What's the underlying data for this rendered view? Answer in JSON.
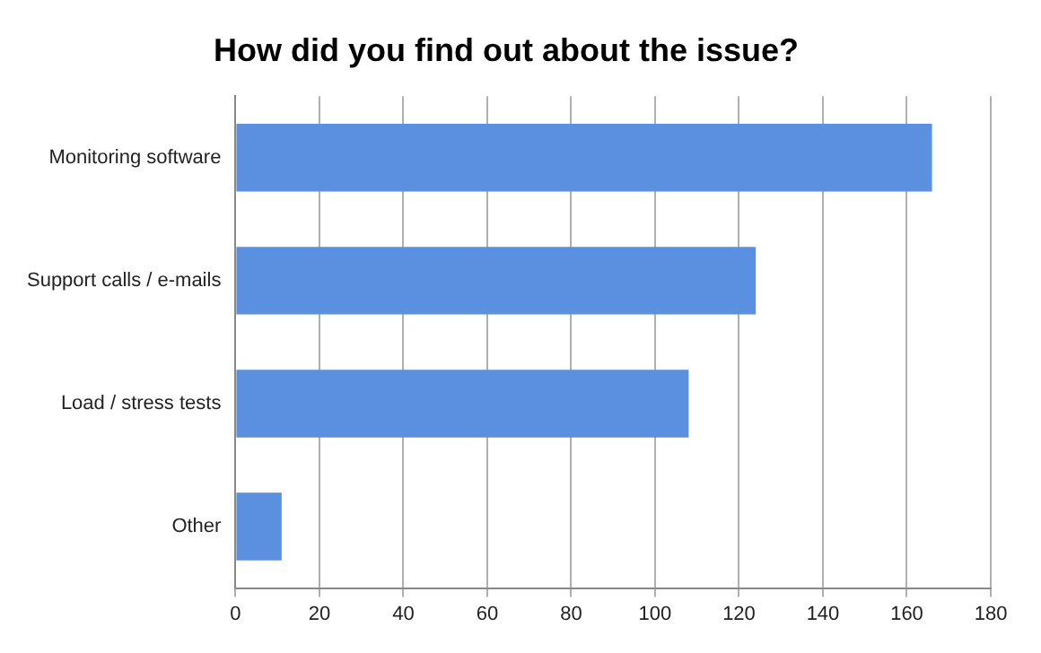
{
  "chart_data": {
    "type": "bar",
    "orientation": "horizontal",
    "title": "How did you find out about the issue?",
    "categories": [
      "Monitoring software",
      "Support calls / e-mails",
      "Load / stress tests",
      "Other"
    ],
    "values": [
      166,
      124,
      108,
      11
    ],
    "color": "#5b8fdf",
    "xlim": [
      0,
      180
    ],
    "xticks": [
      0,
      20,
      40,
      60,
      80,
      100,
      120,
      140,
      160,
      180
    ],
    "grid": "x",
    "legend": false
  }
}
